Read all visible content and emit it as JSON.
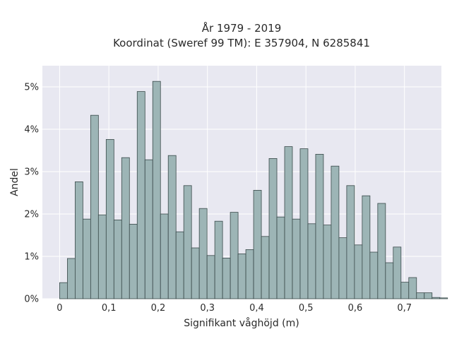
{
  "chart_data": {
    "type": "bar",
    "title": "År 1979 - 2019",
    "subtitle": "Koordinat (Sweref 99 TM): E 357904, N 6285841",
    "xlabel": "Signifikant våghöjd (m)",
    "ylabel": "Andel",
    "xlim": [
      -0.035,
      0.775
    ],
    "ylim": [
      0,
      5.5
    ],
    "x_ticks": [
      0,
      0.1,
      0.2,
      0.3,
      0.4,
      0.5,
      0.6,
      0.7
    ],
    "x_tick_labels": [
      "0",
      "0,1",
      "0,2",
      "0,3",
      "0,4",
      "0,5",
      "0,6",
      "0,7"
    ],
    "y_ticks": [
      0,
      1,
      2,
      3,
      4,
      5
    ],
    "y_tick_labels": [
      "0%",
      "1%",
      "2%",
      "3%",
      "4%",
      "5%"
    ],
    "bin_start": 0,
    "bin_width": 0.01575,
    "values": [
      0.38,
      0.95,
      2.76,
      1.88,
      4.33,
      1.98,
      3.76,
      1.86,
      3.33,
      1.76,
      4.89,
      3.28,
      5.13,
      2.0,
      3.38,
      1.58,
      2.67,
      1.2,
      2.13,
      1.02,
      1.83,
      0.96,
      2.04,
      1.06,
      1.16,
      2.56,
      1.47,
      3.31,
      1.93,
      3.59,
      1.88,
      3.54,
      1.77,
      3.41,
      1.74,
      3.13,
      1.44,
      2.67,
      1.27,
      2.43,
      1.1,
      2.25,
      0.85,
      1.22,
      0.39,
      0.5,
      0.14,
      0.14,
      0.03,
      0.02
    ],
    "bar_color": "#9db5b6",
    "bar_edge_color": "#3a4a4a",
    "plot_background": "#e8e8f1",
    "grid": true
  }
}
